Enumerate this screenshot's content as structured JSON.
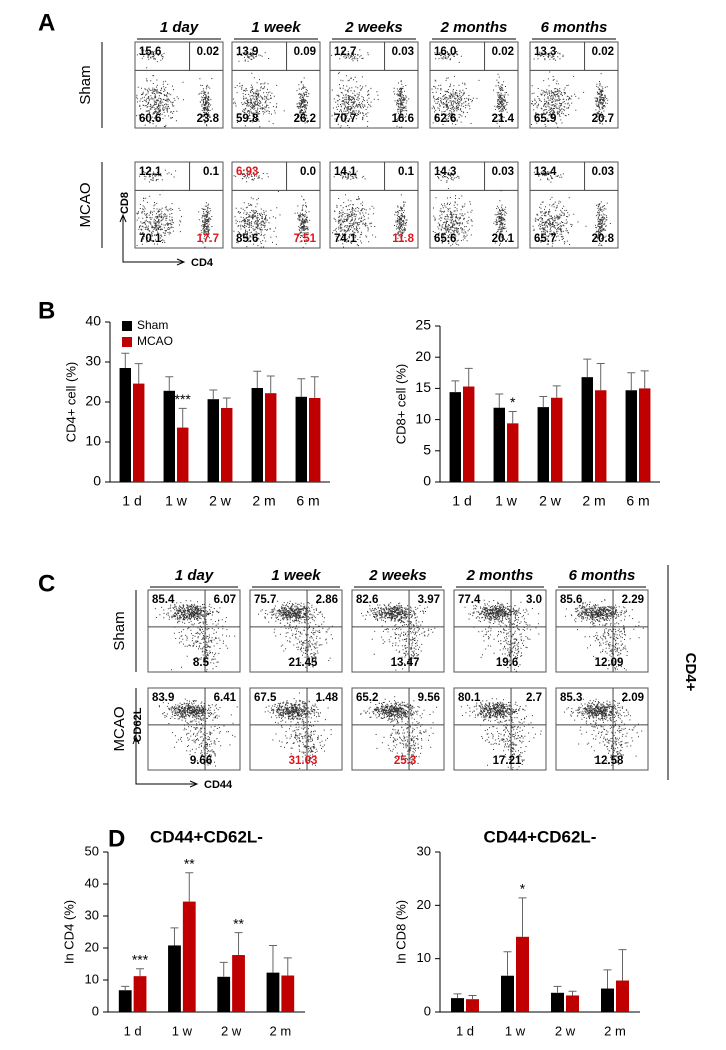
{
  "panel_labels": [
    "A",
    "B",
    "C",
    "D"
  ],
  "panel_a": {
    "timepoints": [
      "1 day",
      "1 week",
      "2 weeks",
      "2 months",
      "6 months"
    ],
    "rows": [
      "Sham",
      "MCAO"
    ],
    "x_axis_label": "CD4",
    "y_axis_label": "CD8",
    "highlight_color": "#e3141b",
    "plots": [
      [
        {
          "ul": "15.6",
          "ur": "0.02",
          "ll": "60.6",
          "lr": "23.8"
        },
        {
          "ul": "13.9",
          "ur": "0.09",
          "ll": "59.8",
          "lr": "26.2"
        },
        {
          "ul": "12.7",
          "ur": "0.03",
          "ll": "70.7",
          "lr": "16.6"
        },
        {
          "ul": "16.0",
          "ur": "0.02",
          "ll": "62.6",
          "lr": "21.4"
        },
        {
          "ul": "13.3",
          "ur": "0.02",
          "ll": "65.9",
          "lr": "20.7"
        }
      ],
      [
        {
          "ul": "12.1",
          "ur": "0.1",
          "ll": "70.1",
          "lr": "17.7",
          "highlighted": [
            "lr"
          ]
        },
        {
          "ul": "6.93",
          "ur": "0.0",
          "ll": "85.6",
          "lr": "7.51",
          "highlighted": [
            "ul",
            "lr"
          ]
        },
        {
          "ul": "14.1",
          "ur": "0.1",
          "ll": "74.1",
          "lr": "11.8",
          "highlighted": [
            "lr"
          ]
        },
        {
          "ul": "14.3",
          "ur": "0.03",
          "ll": "65.6",
          "lr": "20.1"
        },
        {
          "ul": "13.4",
          "ur": "0.03",
          "ll": "65.7",
          "lr": "20.8"
        }
      ]
    ]
  },
  "panel_c": {
    "timepoints": [
      "1 day",
      "1 week",
      "2 weeks",
      "2 months",
      "6 months"
    ],
    "rows": [
      "Sham",
      "MCAO"
    ],
    "x_axis_label": "CD44",
    "y_axis_label": "CD62L",
    "side_label": "CD4+",
    "highlight_color": "#e3141b",
    "plots": [
      [
        {
          "ul": "85.4",
          "ur": "6.07",
          "lr": "8.5"
        },
        {
          "ul": "75.7",
          "ur": "2.86",
          "lr": "21.45"
        },
        {
          "ul": "82.6",
          "ur": "3.97",
          "lr": "13.47"
        },
        {
          "ul": "77.4",
          "ur": "3.0",
          "lr": "19.6"
        },
        {
          "ul": "85.6",
          "ur": "2.29",
          "lr": "12.09"
        }
      ],
      [
        {
          "ul": "83.9",
          "ur": "6.41",
          "lr": "9.66"
        },
        {
          "ul": "67.5",
          "ur": "1.48",
          "lr": "31.03",
          "highlighted": [
            "lr"
          ]
        },
        {
          "ul": "65.2",
          "ur": "9.56",
          "lr": "25.3",
          "highlighted": [
            "lr"
          ]
        },
        {
          "ul": "80.1",
          "ur": "2.7",
          "lr": "17.21"
        },
        {
          "ul": "85.3",
          "ur": "2.09",
          "lr": "12.58"
        }
      ]
    ]
  },
  "chart_data": [
    {
      "type": "bar",
      "y_label": "CD4+ cell (%)",
      "categories": [
        "1 d",
        "1 w",
        "2 w",
        "2 m",
        "6 m"
      ],
      "ylim": [
        0,
        40
      ],
      "yticks": [
        0,
        10,
        20,
        30,
        40
      ],
      "legend": "upper left",
      "series": [
        {
          "name": "Sham",
          "color": "#000000",
          "values": [
            28.5,
            22.8,
            20.7,
            23.5,
            21.3
          ],
          "errors": [
            3.7,
            3.5,
            2.3,
            4.2,
            4.5
          ]
        },
        {
          "name": "MCAO",
          "color": "#c00000",
          "values": [
            24.6,
            13.6,
            18.5,
            22.2,
            21.0
          ],
          "errors": [
            5.0,
            4.8,
            2.5,
            4.3,
            5.3
          ],
          "annotations": [
            null,
            "***",
            null,
            null,
            null
          ]
        }
      ]
    },
    {
      "type": "bar",
      "y_label": "CD8+ cell (%)",
      "categories": [
        "1 d",
        "1 w",
        "2 w",
        "2 m",
        "6 m"
      ],
      "ylim": [
        0,
        25
      ],
      "yticks": [
        0,
        5,
        10,
        15,
        20,
        25
      ],
      "series": [
        {
          "color": "#000000",
          "values": [
            14.4,
            11.9,
            12.0,
            16.8,
            14.7
          ],
          "errors": [
            1.8,
            2.2,
            1.7,
            2.9,
            2.8
          ]
        },
        {
          "color": "#c00000",
          "values": [
            15.3,
            9.4,
            13.5,
            14.7,
            15.0
          ],
          "errors": [
            2.9,
            1.9,
            1.9,
            4.3,
            2.8
          ],
          "annotations": [
            null,
            "*",
            null,
            null,
            null
          ]
        }
      ]
    },
    {
      "type": "bar",
      "title": "CD44+CD62L-",
      "y_label": "In CD4 (%)",
      "categories": [
        "1 d",
        "1 w",
        "2 w",
        "2 m"
      ],
      "ylim": [
        0,
        50
      ],
      "yticks": [
        0,
        10,
        20,
        30,
        40,
        50
      ],
      "series": [
        {
          "color": "#000000",
          "values": [
            6.8,
            20.8,
            11.0,
            12.3
          ],
          "errors": [
            1.2,
            5.5,
            4.5,
            8.5
          ]
        },
        {
          "color": "#c00000",
          "values": [
            11.2,
            34.5,
            17.8,
            11.4
          ],
          "errors": [
            2.3,
            9.0,
            7.0,
            5.5
          ],
          "annotations": [
            "***",
            "**",
            "**",
            null
          ]
        }
      ]
    },
    {
      "type": "bar",
      "title": "CD44+CD62L-",
      "y_label": "In CD8 (%)",
      "categories": [
        "1 d",
        "1 w",
        "2 w",
        "2 m"
      ],
      "ylim": [
        0,
        30
      ],
      "yticks": [
        0,
        10,
        20,
        30
      ],
      "series": [
        {
          "color": "#000000",
          "values": [
            2.6,
            6.8,
            3.6,
            4.4
          ],
          "errors": [
            0.8,
            4.5,
            1.2,
            3.5
          ]
        },
        {
          "color": "#c00000",
          "values": [
            2.4,
            14.1,
            3.1,
            5.9
          ],
          "errors": [
            0.7,
            7.3,
            0.8,
            5.8
          ],
          "annotations": [
            null,
            "*",
            null,
            null
          ]
        }
      ]
    }
  ]
}
